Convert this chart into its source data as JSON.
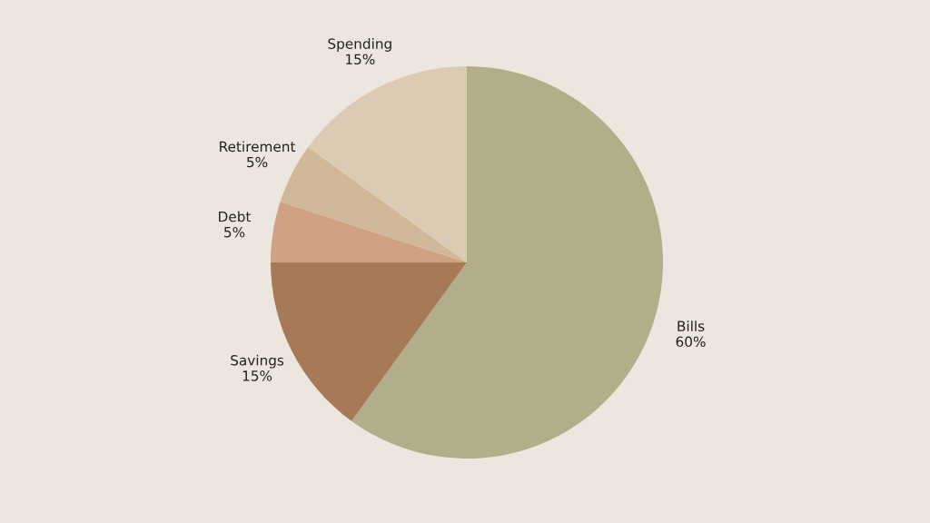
{
  "chart_data": {
    "type": "pie",
    "categories": [
      "Bills",
      "Savings",
      "Debt",
      "Retirement",
      "Spending"
    ],
    "values": [
      60,
      15,
      5,
      5,
      15
    ],
    "value_labels": [
      "60%",
      "15%",
      "5%",
      "5%",
      "15%"
    ],
    "colors": [
      "#b3ae8a",
      "#a67a57",
      "#cfa283",
      "#d0b898",
      "#dccbb4"
    ],
    "legend": false
  }
}
